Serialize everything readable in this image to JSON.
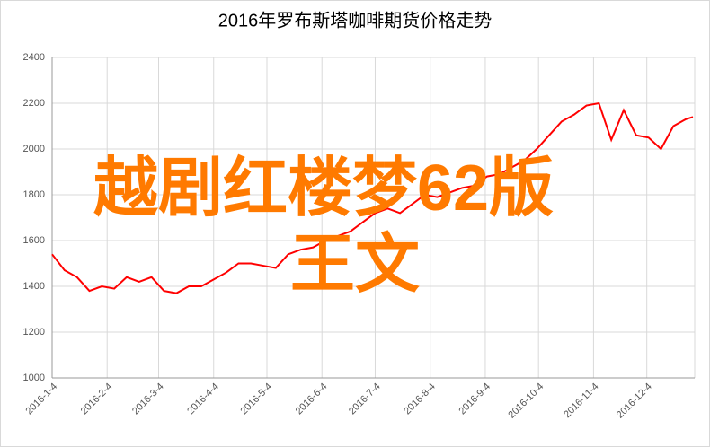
{
  "chart_data": {
    "type": "line",
    "title": "2016年罗布斯塔咖啡期货价格走势",
    "overlay_text": [
      "越剧红楼梦62版",
      "王文"
    ],
    "x": [
      "2016-1-4",
      "2016-1-11",
      "2016-1-18",
      "2016-1-25",
      "2016-2-1",
      "2016-2-8",
      "2016-2-15",
      "2016-2-22",
      "2016-2-29",
      "2016-3-7",
      "2016-3-14",
      "2016-3-21",
      "2016-3-28",
      "2016-4-4",
      "2016-4-11",
      "2016-4-18",
      "2016-4-25",
      "2016-5-2",
      "2016-5-9",
      "2016-5-16",
      "2016-5-23",
      "2016-5-30",
      "2016-6-6",
      "2016-6-13",
      "2016-6-20",
      "2016-6-27",
      "2016-7-4",
      "2016-7-11",
      "2016-7-18",
      "2016-7-25",
      "2016-8-1",
      "2016-8-8",
      "2016-8-15",
      "2016-8-22",
      "2016-8-29",
      "2016-9-5",
      "2016-9-12",
      "2016-9-19",
      "2016-9-26",
      "2016-10-3",
      "2016-10-10",
      "2016-10-17",
      "2016-10-24",
      "2016-10-31",
      "2016-11-7",
      "2016-11-14",
      "2016-11-21",
      "2016-11-28",
      "2016-12-5",
      "2016-12-12",
      "2016-12-19",
      "2016-12-26",
      "2016-12-30"
    ],
    "series": [
      {
        "color": "#ff0000",
        "values": [
          1540,
          1470,
          1440,
          1380,
          1400,
          1390,
          1440,
          1420,
          1440,
          1380,
          1370,
          1400,
          1400,
          1430,
          1460,
          1500,
          1500,
          1490,
          1480,
          1540,
          1560,
          1570,
          1600,
          1620,
          1640,
          1680,
          1720,
          1740,
          1720,
          1760,
          1800,
          1790,
          1810,
          1830,
          1840,
          1880,
          1890,
          1920,
          1950,
          2000,
          2060,
          2120,
          2150,
          2190,
          2200,
          2040,
          2170,
          2060,
          2050,
          2000,
          2100,
          2130,
          2140
        ]
      }
    ],
    "xlim": [
      "2016-1-4",
      "2016-12-31"
    ],
    "xticks": [
      "2016-1-4",
      "2016-2-4",
      "2016-3-4",
      "2016-4-4",
      "2016-5-4",
      "2016-6-4",
      "2016-7-4",
      "2016-8-4",
      "2016-9-4",
      "2016-10-4",
      "2016-11-4",
      "2016-12-4"
    ],
    "ylim": [
      1000,
      2400
    ],
    "yticks": [
      1000,
      1200,
      1400,
      1600,
      1800,
      2000,
      2200,
      2400
    ],
    "grid": true
  }
}
